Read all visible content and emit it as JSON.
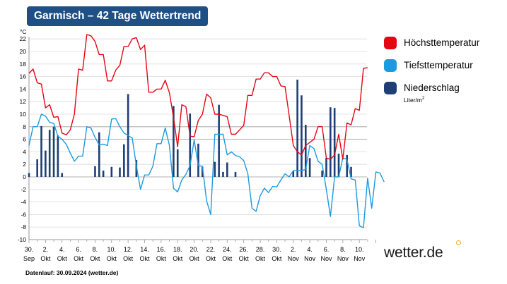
{
  "header": {
    "title": "Garmisch – 42 Tage Wettertrend"
  },
  "legend": {
    "items": [
      {
        "label": "Höchsttemperatur",
        "color": "#e30613"
      },
      {
        "label": "Tiefsttemperatur",
        "color": "#1a9be0"
      },
      {
        "label": "Niederschlag",
        "color": "#1e3f75",
        "unit": "Liter/m",
        "unit_sup": "2"
      }
    ]
  },
  "brand": {
    "logo_text": "wetter.de",
    "dot_color": "#f4a81d"
  },
  "footer": {
    "text": "Datenlauf: 30.09.2024 (wetter.de)"
  },
  "chart_data": {
    "type": "line",
    "ylabel": "°C",
    "ylim": [
      -10,
      22
    ],
    "yticks": [
      -10,
      -8,
      -6,
      -4,
      -2,
      0,
      2,
      4,
      6,
      8,
      10,
      12,
      14,
      16,
      18,
      20,
      22
    ],
    "grid": true,
    "legend_position": "right",
    "x_range": [
      0,
      42
    ],
    "x_ticks": [
      {
        "day": "30.",
        "month": "Sep"
      },
      {
        "day": "2.",
        "month": "Okt"
      },
      {
        "day": "4.",
        "month": "Okt"
      },
      {
        "day": "6.",
        "month": "Okt"
      },
      {
        "day": "8.",
        "month": "Okt"
      },
      {
        "day": "10.",
        "month": "Okt"
      },
      {
        "day": "12.",
        "month": "Okt"
      },
      {
        "day": "14.",
        "month": "Okt"
      },
      {
        "day": "16.",
        "month": "Okt"
      },
      {
        "day": "18.",
        "month": "Okt"
      },
      {
        "day": "20.",
        "month": "Okt"
      },
      {
        "day": "22.",
        "month": "Okt"
      },
      {
        "day": "24.",
        "month": "Okt"
      },
      {
        "day": "26.",
        "month": "Okt"
      },
      {
        "day": "28.",
        "month": "Okt"
      },
      {
        "day": "30.",
        "month": "Okt"
      },
      {
        "day": "2.",
        "month": "Nov"
      },
      {
        "day": "4.",
        "month": "Nov"
      },
      {
        "day": "6.",
        "month": "Nov"
      },
      {
        "day": "8.",
        "month": "Nov"
      },
      {
        "day": "10.",
        "month": "Nov"
      }
    ],
    "series": [
      {
        "name": "Höchsttemperatur",
        "color": "#e30613",
        "points": [
          [
            0,
            16.5
          ],
          [
            0.5,
            17.2
          ],
          [
            1,
            15
          ],
          [
            1.5,
            14.8
          ],
          [
            2,
            11
          ],
          [
            2.5,
            11.5
          ],
          [
            3,
            9.5
          ],
          [
            3.5,
            9.6
          ],
          [
            4,
            7
          ],
          [
            4.5,
            6.7
          ],
          [
            5,
            7.5
          ],
          [
            5.5,
            10
          ],
          [
            6,
            17.2
          ],
          [
            6.5,
            17
          ],
          [
            7,
            22.7
          ],
          [
            7.5,
            22.5
          ],
          [
            8,
            21.6
          ],
          [
            8.5,
            19.5
          ],
          [
            9,
            19.5
          ],
          [
            9.5,
            15.3
          ],
          [
            10,
            15.3
          ],
          [
            10.5,
            17
          ],
          [
            11,
            17.8
          ],
          [
            11.5,
            20.8
          ],
          [
            12,
            20.8
          ],
          [
            12.5,
            22
          ],
          [
            13,
            22.2
          ],
          [
            13.5,
            20.3
          ],
          [
            14,
            21
          ],
          [
            14.5,
            13.5
          ],
          [
            15,
            13.5
          ],
          [
            15.5,
            14
          ],
          [
            16,
            14
          ],
          [
            16.5,
            15.4
          ],
          [
            17,
            13.4
          ],
          [
            17.5,
            9.5
          ],
          [
            18,
            4.8
          ],
          [
            18.5,
            11.5
          ],
          [
            19,
            11.2
          ],
          [
            19.5,
            6.5
          ],
          [
            20,
            6.4
          ],
          [
            20.5,
            9
          ],
          [
            21,
            10
          ],
          [
            21.5,
            13.2
          ],
          [
            22,
            12.6
          ],
          [
            22.5,
            10
          ],
          [
            23,
            10
          ],
          [
            23.5,
            9.8
          ],
          [
            24,
            9.6
          ],
          [
            24.5,
            6.8
          ],
          [
            25,
            6.8
          ],
          [
            25.5,
            7.5
          ],
          [
            26,
            8.2
          ],
          [
            26.5,
            13
          ],
          [
            27,
            13
          ],
          [
            27.5,
            15.6
          ],
          [
            28,
            15.6
          ],
          [
            28.5,
            16.6
          ],
          [
            29,
            16.6
          ],
          [
            29.5,
            16
          ],
          [
            30,
            16
          ],
          [
            30.5,
            14.5
          ],
          [
            31,
            14.4
          ],
          [
            31.5,
            9.8
          ],
          [
            32,
            5
          ],
          [
            32.5,
            4
          ],
          [
            33,
            3.5
          ],
          [
            33.5,
            5
          ],
          [
            34,
            5.5
          ],
          [
            34.5,
            6
          ],
          [
            35,
            8
          ],
          [
            35.5,
            8
          ],
          [
            36,
            3
          ],
          [
            36.5,
            2.8
          ],
          [
            37,
            3.5
          ],
          [
            37.5,
            6.8
          ],
          [
            38,
            2.8
          ],
          [
            38.5,
            8.6
          ],
          [
            39,
            8.3
          ],
          [
            39.5,
            10.9
          ],
          [
            40,
            10.6
          ],
          [
            40.5,
            17.3
          ],
          [
            41,
            17.4
          ]
        ]
      },
      {
        "name": "Tiefsttemperatur",
        "color": "#1a9be0",
        "points": [
          [
            0,
            5
          ],
          [
            0.5,
            8
          ],
          [
            1,
            8
          ],
          [
            1.5,
            10
          ],
          [
            2,
            9.7
          ],
          [
            2.5,
            8.7
          ],
          [
            3,
            8.5
          ],
          [
            3.5,
            6.5
          ],
          [
            4,
            6
          ],
          [
            4.5,
            5.2
          ],
          [
            5,
            3.8
          ],
          [
            5.5,
            2.5
          ],
          [
            6,
            3.3
          ],
          [
            6.5,
            3.3
          ],
          [
            7,
            8
          ],
          [
            7.5,
            7.8
          ],
          [
            8,
            6.3
          ],
          [
            8.5,
            5.1
          ],
          [
            9,
            5.2
          ],
          [
            9.5,
            5
          ],
          [
            10,
            9.2
          ],
          [
            10.5,
            9.3
          ],
          [
            11,
            8
          ],
          [
            11.5,
            7
          ],
          [
            12,
            6.6
          ],
          [
            12.5,
            6.2
          ],
          [
            13,
            1.8
          ],
          [
            13.5,
            -2
          ],
          [
            14,
            0.3
          ],
          [
            14.5,
            0.3
          ],
          [
            15,
            1.7
          ],
          [
            15.5,
            5.3
          ],
          [
            16,
            5.3
          ],
          [
            16.5,
            7.8
          ],
          [
            17,
            5
          ],
          [
            17.5,
            -1.8
          ],
          [
            18,
            -2.4
          ],
          [
            18.5,
            -0.5
          ],
          [
            19,
            0.4
          ],
          [
            19.5,
            1.8
          ],
          [
            20,
            5.9
          ],
          [
            20.5,
            1.8
          ],
          [
            21,
            1.7
          ],
          [
            21.5,
            -3.8
          ],
          [
            22,
            -6
          ],
          [
            22.5,
            6.8
          ],
          [
            23,
            6.8
          ],
          [
            23.5,
            6.8
          ],
          [
            24,
            3.5
          ],
          [
            24.5,
            4
          ],
          [
            25,
            3.4
          ],
          [
            25.5,
            3.2
          ],
          [
            26,
            2.6
          ],
          [
            26.5,
            0.5
          ],
          [
            27,
            -5
          ],
          [
            27.5,
            -5.5
          ],
          [
            28,
            -3
          ],
          [
            28.5,
            -1.8
          ],
          [
            29,
            -2.5
          ],
          [
            29.5,
            -1.5
          ],
          [
            30,
            -1.6
          ],
          [
            30.5,
            -0.5
          ],
          [
            31,
            0.5
          ],
          [
            31.5,
            0
          ],
          [
            32,
            1
          ],
          [
            32.5,
            1
          ],
          [
            33,
            1
          ],
          [
            33.5,
            1.2
          ],
          [
            34,
            5
          ],
          [
            34.5,
            4.5
          ],
          [
            35,
            2.5
          ],
          [
            35.5,
            2
          ],
          [
            36,
            -2
          ],
          [
            36.5,
            -6.3
          ],
          [
            37,
            0
          ],
          [
            37.5,
            0
          ],
          [
            38,
            3
          ],
          [
            38.5,
            2.8
          ],
          [
            39,
            -0.3
          ],
          [
            39.5,
            -0.5
          ],
          [
            40,
            -7.8
          ],
          [
            40.5,
            -8.1
          ],
          [
            41,
            -0.2
          ],
          [
            41.5,
            -5
          ],
          [
            42,
            0.8
          ],
          [
            42.5,
            0.6
          ],
          [
            43,
            -0.8
          ]
        ]
      },
      {
        "name": "Niederschlag",
        "color": "#1e3f75",
        "bars": [
          [
            0,
            0.6
          ],
          [
            1,
            2.8
          ],
          [
            1.5,
            8.1
          ],
          [
            2,
            4.2
          ],
          [
            2.5,
            7.5
          ],
          [
            3,
            8
          ],
          [
            3.5,
            6.6
          ],
          [
            4,
            0.6
          ],
          [
            8,
            1.7
          ],
          [
            8.5,
            7.1
          ],
          [
            9,
            1
          ],
          [
            10,
            1.6
          ],
          [
            11,
            1.5
          ],
          [
            11.5,
            5.2
          ],
          [
            12,
            13.2
          ],
          [
            13,
            2.7
          ],
          [
            17.5,
            11.3
          ],
          [
            18,
            4.4
          ],
          [
            19.5,
            10.1
          ],
          [
            20.5,
            5.3
          ],
          [
            21,
            1.6
          ],
          [
            22.5,
            2.4
          ],
          [
            23,
            11.5
          ],
          [
            23.5,
            0.8
          ],
          [
            24,
            2.3
          ],
          [
            25,
            0.8
          ],
          [
            32,
            0.9
          ],
          [
            32.5,
            15.5
          ],
          [
            33,
            13
          ],
          [
            33.5,
            8.3
          ],
          [
            34,
            3
          ],
          [
            35.5,
            1
          ],
          [
            36,
            3
          ],
          [
            36.5,
            11.1
          ],
          [
            37,
            11
          ],
          [
            37.5,
            3.7
          ],
          [
            38.5,
            3.5
          ],
          [
            39,
            1.6
          ]
        ]
      }
    ]
  }
}
